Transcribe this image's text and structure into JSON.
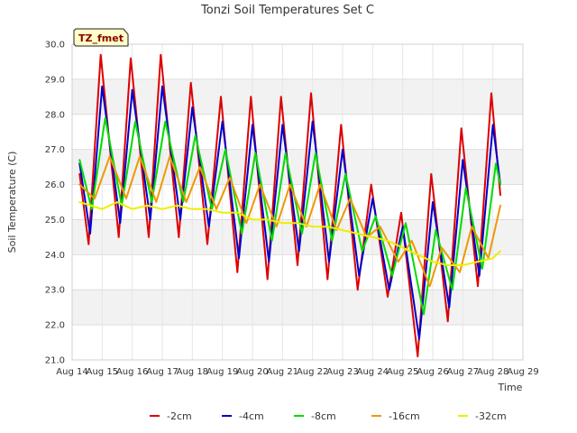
{
  "chart_data": {
    "type": "line",
    "title": "Tonzi Soil Temperatures Set C",
    "xlabel": "Time",
    "ylabel": "Soil Temperature (C)",
    "tag": "TZ_fmet",
    "xlim": [
      0,
      15
    ],
    "ylim": [
      21.0,
      30.0
    ],
    "x_tick_values": [
      0,
      1,
      2,
      3,
      4,
      5,
      6,
      7,
      8,
      9,
      10,
      11,
      12,
      13,
      14,
      15
    ],
    "x_tick_labels": [
      "Aug 14",
      "Aug 15",
      "Aug 16",
      "Aug 17",
      "Aug 18",
      "Aug 19",
      "Aug 20",
      "Aug 21",
      "Aug 22",
      "Aug 23",
      "Aug 24",
      "Aug 25",
      "Aug 26",
      "Aug 27",
      "Aug 28",
      "Aug 29"
    ],
    "y_tick_values": [
      21.0,
      22.0,
      23.0,
      24.0,
      25.0,
      26.0,
      27.0,
      28.0,
      29.0,
      30.0
    ],
    "y_tick_labels": [
      "21.0",
      "22.0",
      "23.0",
      "24.0",
      "25.0",
      "26.0",
      "27.0",
      "28.0",
      "29.0",
      "30.0"
    ],
    "grid": true,
    "legend_position": "bottom",
    "series": [
      {
        "name": "-2cm",
        "color": "#dd0000",
        "x": [
          0.25,
          0.55,
          0.95,
          1.55,
          1.95,
          2.55,
          2.95,
          3.55,
          3.95,
          4.5,
          4.95,
          5.5,
          5.95,
          6.5,
          6.95,
          7.5,
          7.95,
          8.5,
          8.95,
          9.5,
          9.95,
          10.5,
          10.95,
          11.5,
          11.95,
          12.5,
          12.95,
          13.5,
          13.95,
          14.25
        ],
        "y": [
          26.3,
          24.3,
          29.7,
          24.5,
          29.6,
          24.5,
          29.7,
          24.5,
          28.9,
          24.3,
          28.5,
          23.5,
          28.5,
          23.3,
          28.5,
          23.7,
          28.6,
          23.3,
          27.7,
          23.0,
          26.0,
          22.8,
          25.2,
          21.1,
          26.3,
          22.1,
          27.6,
          23.1,
          28.6,
          25.7
        ]
      },
      {
        "name": "-4cm",
        "color": "#0000cc",
        "x": [
          0.25,
          0.6,
          1.0,
          1.6,
          2.0,
          2.6,
          3.0,
          3.6,
          4.0,
          4.55,
          5.0,
          5.55,
          6.0,
          6.55,
          7.0,
          7.55,
          8.0,
          8.55,
          9.0,
          9.55,
          10.0,
          10.55,
          11.0,
          11.55,
          12.0,
          12.55,
          13.0,
          13.55,
          14.0,
          14.25
        ],
        "y": [
          26.6,
          24.6,
          28.8,
          24.9,
          28.7,
          25.0,
          28.8,
          25.0,
          28.2,
          24.8,
          27.8,
          23.9,
          27.7,
          23.8,
          27.7,
          24.1,
          27.8,
          23.8,
          27.0,
          23.4,
          25.6,
          23.0,
          24.8,
          21.6,
          25.5,
          22.5,
          26.7,
          23.4,
          27.7,
          26.0
        ]
      },
      {
        "name": "-8cm",
        "color": "#00dd00",
        "x": [
          0.25,
          0.65,
          1.1,
          1.65,
          2.1,
          2.65,
          3.1,
          3.7,
          4.1,
          4.65,
          5.1,
          5.65,
          6.1,
          6.65,
          7.1,
          7.65,
          8.1,
          8.65,
          9.1,
          9.65,
          10.1,
          10.65,
          11.1,
          11.7,
          12.1,
          12.65,
          13.1,
          13.65,
          14.1,
          14.25
        ],
        "y": [
          26.7,
          25.3,
          27.9,
          25.4,
          27.8,
          25.5,
          27.8,
          25.5,
          27.4,
          25.3,
          27.0,
          24.6,
          26.9,
          24.4,
          26.9,
          24.6,
          26.9,
          24.4,
          26.3,
          24.1,
          25.1,
          23.4,
          24.9,
          22.3,
          24.7,
          23.0,
          25.9,
          23.6,
          26.6,
          26.0
        ]
      },
      {
        "name": "-16cm",
        "color": "#ee9900",
        "x": [
          0.25,
          0.75,
          1.25,
          1.8,
          2.25,
          2.8,
          3.25,
          3.8,
          4.25,
          4.8,
          5.25,
          5.8,
          6.25,
          6.8,
          7.25,
          7.8,
          8.25,
          8.8,
          9.25,
          9.8,
          10.25,
          10.85,
          11.3,
          11.9,
          12.3,
          12.9,
          13.3,
          13.85,
          14.25
        ],
        "y": [
          26.0,
          25.6,
          26.8,
          25.6,
          26.8,
          25.5,
          26.8,
          25.5,
          26.5,
          25.3,
          26.2,
          24.9,
          26.0,
          24.8,
          26.0,
          24.8,
          26.0,
          24.7,
          25.6,
          24.5,
          24.8,
          23.8,
          24.4,
          23.1,
          24.2,
          23.5,
          24.8,
          23.9,
          25.4
        ]
      },
      {
        "name": "-32cm",
        "color": "#eeee00",
        "x": [
          0.25,
          1.0,
          1.5,
          2.0,
          2.5,
          3.0,
          3.5,
          4.0,
          4.5,
          5.0,
          5.5,
          6.0,
          6.5,
          7.0,
          7.5,
          8.0,
          8.5,
          9.0,
          9.5,
          10.0,
          10.5,
          11.0,
          11.5,
          12.0,
          12.5,
          13.0,
          13.5,
          14.0,
          14.25
        ],
        "y": [
          25.5,
          25.3,
          25.5,
          25.3,
          25.4,
          25.3,
          25.4,
          25.3,
          25.3,
          25.2,
          25.2,
          25.0,
          25.0,
          24.9,
          24.9,
          24.8,
          24.8,
          24.7,
          24.6,
          24.5,
          24.4,
          24.2,
          24.0,
          23.8,
          23.7,
          23.7,
          23.8,
          23.9,
          24.1
        ]
      }
    ]
  }
}
